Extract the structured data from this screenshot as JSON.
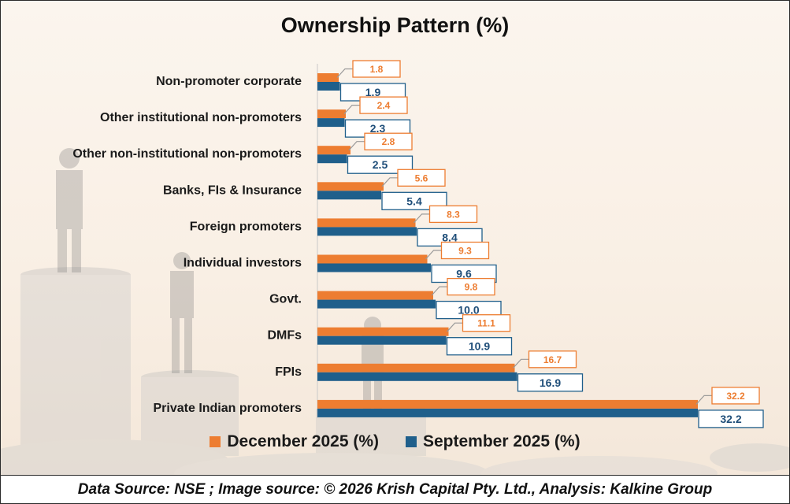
{
  "colors": {
    "series_1": "#ed7d31",
    "series_2": "#1f5f8b",
    "label_1_text": "#ed7d31",
    "label_2_text": "#1f4e79"
  },
  "chart_data": {
    "type": "bar",
    "orientation": "horizontal",
    "title": "Ownership Pattern (%)",
    "categories": [
      "Non-promoter corporate",
      "Other institutional non-promoters",
      "Other non-institutional non-promoters",
      "Banks, FIs & Insurance",
      "Foreign promoters",
      "Individual investors",
      "Govt.",
      "DMFs",
      "FPIs",
      "Private Indian promoters"
    ],
    "series": [
      {
        "name": "December 2025 (%)",
        "values": [
          1.8,
          2.4,
          2.8,
          5.6,
          8.3,
          9.3,
          9.8,
          11.1,
          16.7,
          32.2
        ]
      },
      {
        "name": "September 2025 (%)",
        "values": [
          1.9,
          2.3,
          2.5,
          5.4,
          8.4,
          9.6,
          10.0,
          10.9,
          16.9,
          32.2
        ]
      }
    ],
    "data_labels": {
      "December 2025 (%)": [
        "1.8",
        "2.4",
        "2.8",
        "5.6",
        "8.3",
        "9.3",
        "9.8",
        "11.1",
        "16.7",
        "32.2"
      ],
      "September 2025 (%)": [
        "1.9",
        "2.3",
        "2.5",
        "5.4",
        "8.4",
        "9.6",
        "10.0",
        "10.9",
        "16.9",
        "32.2"
      ]
    },
    "xlim": [
      0,
      35
    ],
    "legend_position": "bottom",
    "grid": false
  },
  "footer": {
    "text": "Data Source: NSE ; Image source: © 2026 Krish Capital Pty. Ltd., Analysis: Kalkine Group"
  }
}
